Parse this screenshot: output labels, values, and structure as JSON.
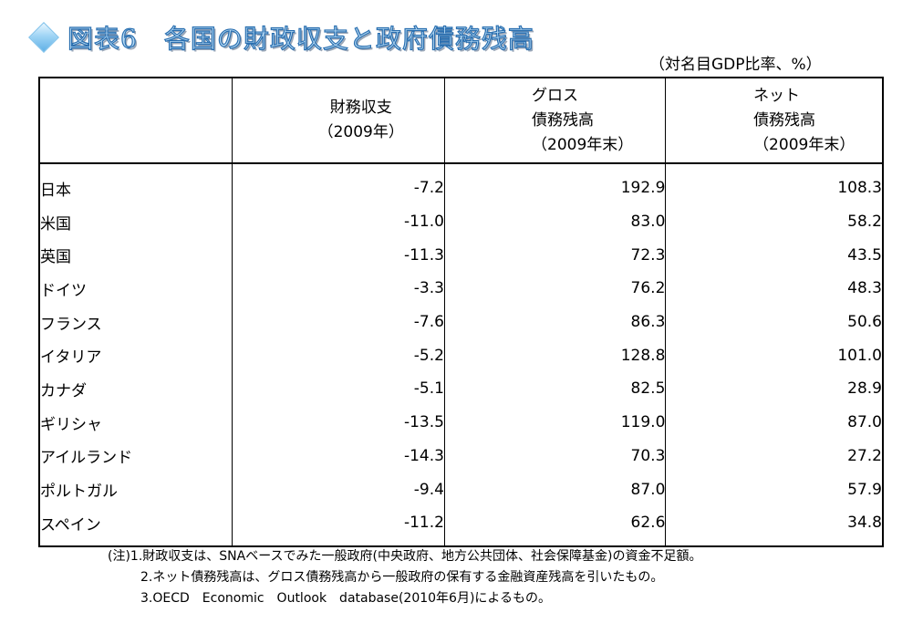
{
  "title": "図表6　各国の財政収支と政府債務残高",
  "icons": {
    "bullet": "diamond-bullet-icon"
  },
  "unit": "（対名目GDP比率、%）",
  "headers": {
    "fiscal": {
      "line1": "財務収支",
      "line2": "（2009年）"
    },
    "gross": {
      "line1": "グロス",
      "line2": "債務残高",
      "line3": "（2009年末）"
    },
    "net": {
      "line1": "ネット",
      "line2": "債務残高",
      "line3": "（2009年末）"
    }
  },
  "rows": [
    {
      "country": "日本",
      "fiscal": "-7.2",
      "gross": "192.9",
      "net": "108.3"
    },
    {
      "country": "米国",
      "fiscal": "-11.0",
      "gross": "83.0",
      "net": "58.2"
    },
    {
      "country": "英国",
      "fiscal": "-11.3",
      "gross": "72.3",
      "net": "43.5"
    },
    {
      "country": "ドイツ",
      "fiscal": "-3.3",
      "gross": "76.2",
      "net": "48.3"
    },
    {
      "country": "フランス",
      "fiscal": "-7.6",
      "gross": "86.3",
      "net": "50.6"
    },
    {
      "country": "イタリア",
      "fiscal": "-5.2",
      "gross": "128.8",
      "net": "101.0"
    },
    {
      "country": "カナダ",
      "fiscal": "-5.1",
      "gross": "82.5",
      "net": "28.9"
    },
    {
      "country": "ギリシャ",
      "fiscal": "-13.5",
      "gross": "119.0",
      "net": "87.0"
    },
    {
      "country": "アイルランド",
      "fiscal": "-14.3",
      "gross": "70.3",
      "net": "27.2"
    },
    {
      "country": "ポルトガル",
      "fiscal": "-9.4",
      "gross": "87.0",
      "net": "57.9"
    },
    {
      "country": "スペイン",
      "fiscal": "-11.2",
      "gross": "62.6",
      "net": "34.8"
    }
  ],
  "notes": [
    "(注)1.財政収支は、SNAベースでみた一般政府(中央政府、地方公共団体、社会保障基金)の資金不足額。",
    "2.ネット債務残高は、グロス債務残高から一般政府の保有する金融資産残高を引いたもの。",
    "3.OECD　Economic　Outlook　database(2010年6月)によるもの。"
  ]
}
